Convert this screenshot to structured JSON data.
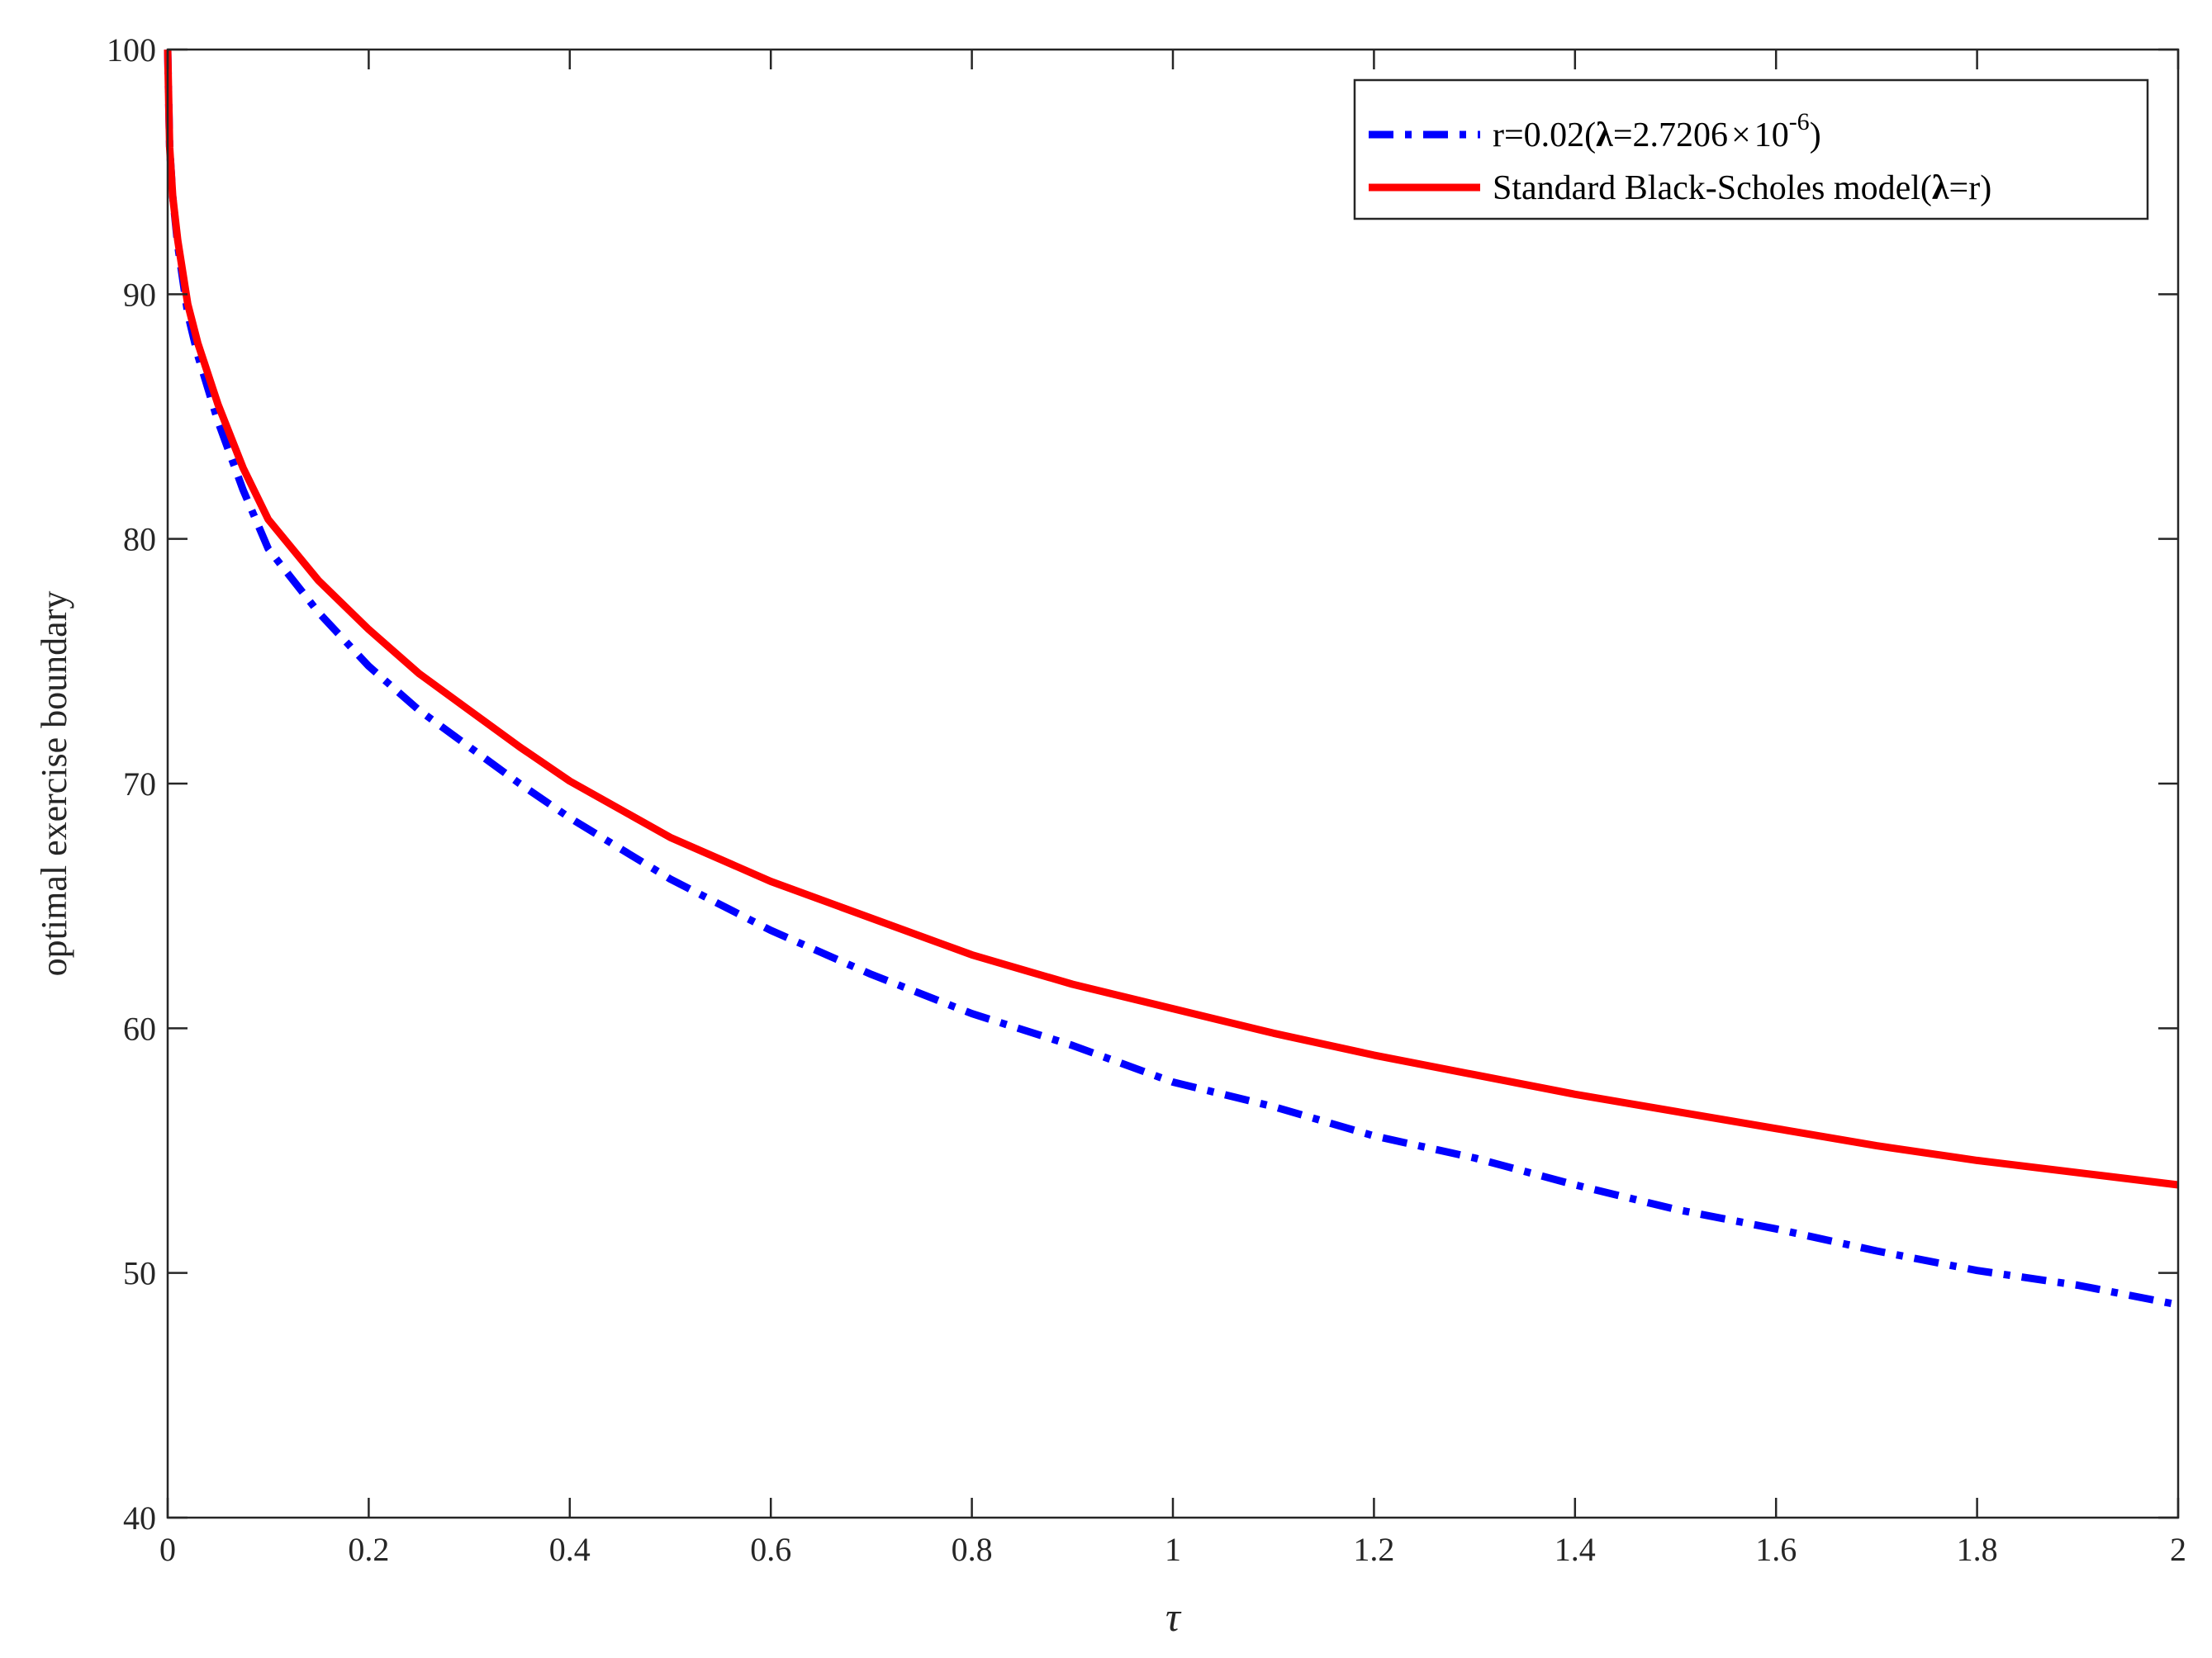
{
  "chart_data": {
    "type": "line",
    "title": "",
    "xlabel": "τ",
    "ylabel": "optimal exercise boundary",
    "xlim": [
      0,
      2
    ],
    "ylim": [
      40,
      100
    ],
    "x_ticks": [
      0,
      0.2,
      0.4,
      0.6,
      0.8,
      1,
      1.2,
      1.4,
      1.6,
      1.8,
      2
    ],
    "x_tick_labels": [
      "0",
      "0.2",
      "0.4",
      "0.6",
      "0.8",
      "1",
      "1.2",
      "1.4",
      "1.6",
      "1.8",
      "2"
    ],
    "y_ticks": [
      40,
      50,
      60,
      70,
      80,
      90,
      100
    ],
    "y_tick_labels": [
      "40",
      "50",
      "60",
      "70",
      "80",
      "90",
      "100"
    ],
    "grid": false,
    "legend_position": "top-right",
    "legend": {
      "entry1_prefix": "r=0.02(",
      "entry1_lambda": "λ",
      "entry1_mid": "=2.7206",
      "entry1_times": "×",
      "entry1_base": "10",
      "entry1_exp": "-6",
      "entry1_suffix": ")",
      "entry2_prefix": "Standard Black-Scholes model(",
      "entry2_lambda": "λ",
      "entry2_suffix": "=r)"
    },
    "series": [
      {
        "line_style": "dash-dot",
        "color": "#0000ff",
        "x": [
          0,
          0.002,
          0.005,
          0.01,
          0.02,
          0.03,
          0.05,
          0.075,
          0.1,
          0.15,
          0.2,
          0.25,
          0.3,
          0.35,
          0.4,
          0.5,
          0.6,
          0.7,
          0.8,
          0.9,
          1.0,
          1.1,
          1.2,
          1.3,
          1.4,
          1.5,
          1.6,
          1.7,
          1.8,
          1.9,
          2.0
        ],
        "values": [
          100,
          96.0,
          94.0,
          92.0,
          89.2,
          87.5,
          84.8,
          82.0,
          79.6,
          77.0,
          74.8,
          73.0,
          71.5,
          70.0,
          68.6,
          66.1,
          64.0,
          62.2,
          60.6,
          59.3,
          57.8,
          56.8,
          55.6,
          54.7,
          53.6,
          52.6,
          51.8,
          50.9,
          50.1,
          49.5,
          48.7
        ]
      },
      {
        "line_style": "solid",
        "color": "#ff0000",
        "x": [
          0,
          0.002,
          0.005,
          0.01,
          0.02,
          0.03,
          0.05,
          0.075,
          0.1,
          0.15,
          0.2,
          0.25,
          0.3,
          0.35,
          0.4,
          0.5,
          0.6,
          0.7,
          0.8,
          0.9,
          1.0,
          1.1,
          1.2,
          1.3,
          1.4,
          1.5,
          1.6,
          1.7,
          1.8,
          1.9,
          2.0
        ],
        "values": [
          100,
          96.0,
          94.0,
          92.2,
          89.6,
          88.0,
          85.5,
          82.9,
          80.8,
          78.3,
          76.3,
          74.5,
          73.0,
          71.5,
          70.1,
          67.8,
          66.0,
          64.5,
          63.0,
          61.8,
          60.8,
          59.8,
          58.9,
          58.1,
          57.3,
          56.6,
          55.9,
          55.2,
          54.6,
          54.1,
          53.6
        ]
      }
    ]
  }
}
